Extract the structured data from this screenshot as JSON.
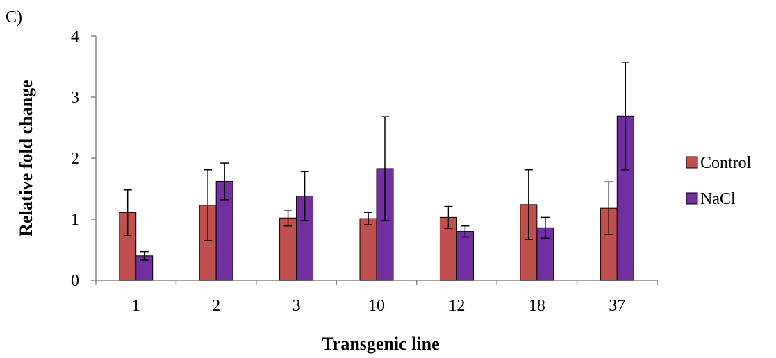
{
  "panel_label": "C)",
  "chart_data": {
    "type": "bar",
    "title": "",
    "xlabel": "Transgenic line",
    "ylabel": "Relative fold change",
    "ylim": [
      0,
      4
    ],
    "yticks": [
      0,
      1,
      2,
      3,
      4
    ],
    "grid": false,
    "legend_position": "right",
    "categories": [
      "1",
      "2",
      "3",
      "10",
      "12",
      "18",
      "37"
    ],
    "series": [
      {
        "name": "Control",
        "color": "#C0504D",
        "values": [
          1.11,
          1.23,
          1.02,
          1.01,
          1.03,
          1.24,
          1.18
        ],
        "errors": [
          0.37,
          0.58,
          0.13,
          0.1,
          0.18,
          0.57,
          0.43
        ]
      },
      {
        "name": "NaCl",
        "color": "#7030A0",
        "values": [
          0.4,
          1.62,
          1.38,
          1.83,
          0.8,
          0.86,
          2.69
        ],
        "errors": [
          0.07,
          0.3,
          0.4,
          0.85,
          0.09,
          0.17,
          0.88
        ]
      }
    ]
  }
}
